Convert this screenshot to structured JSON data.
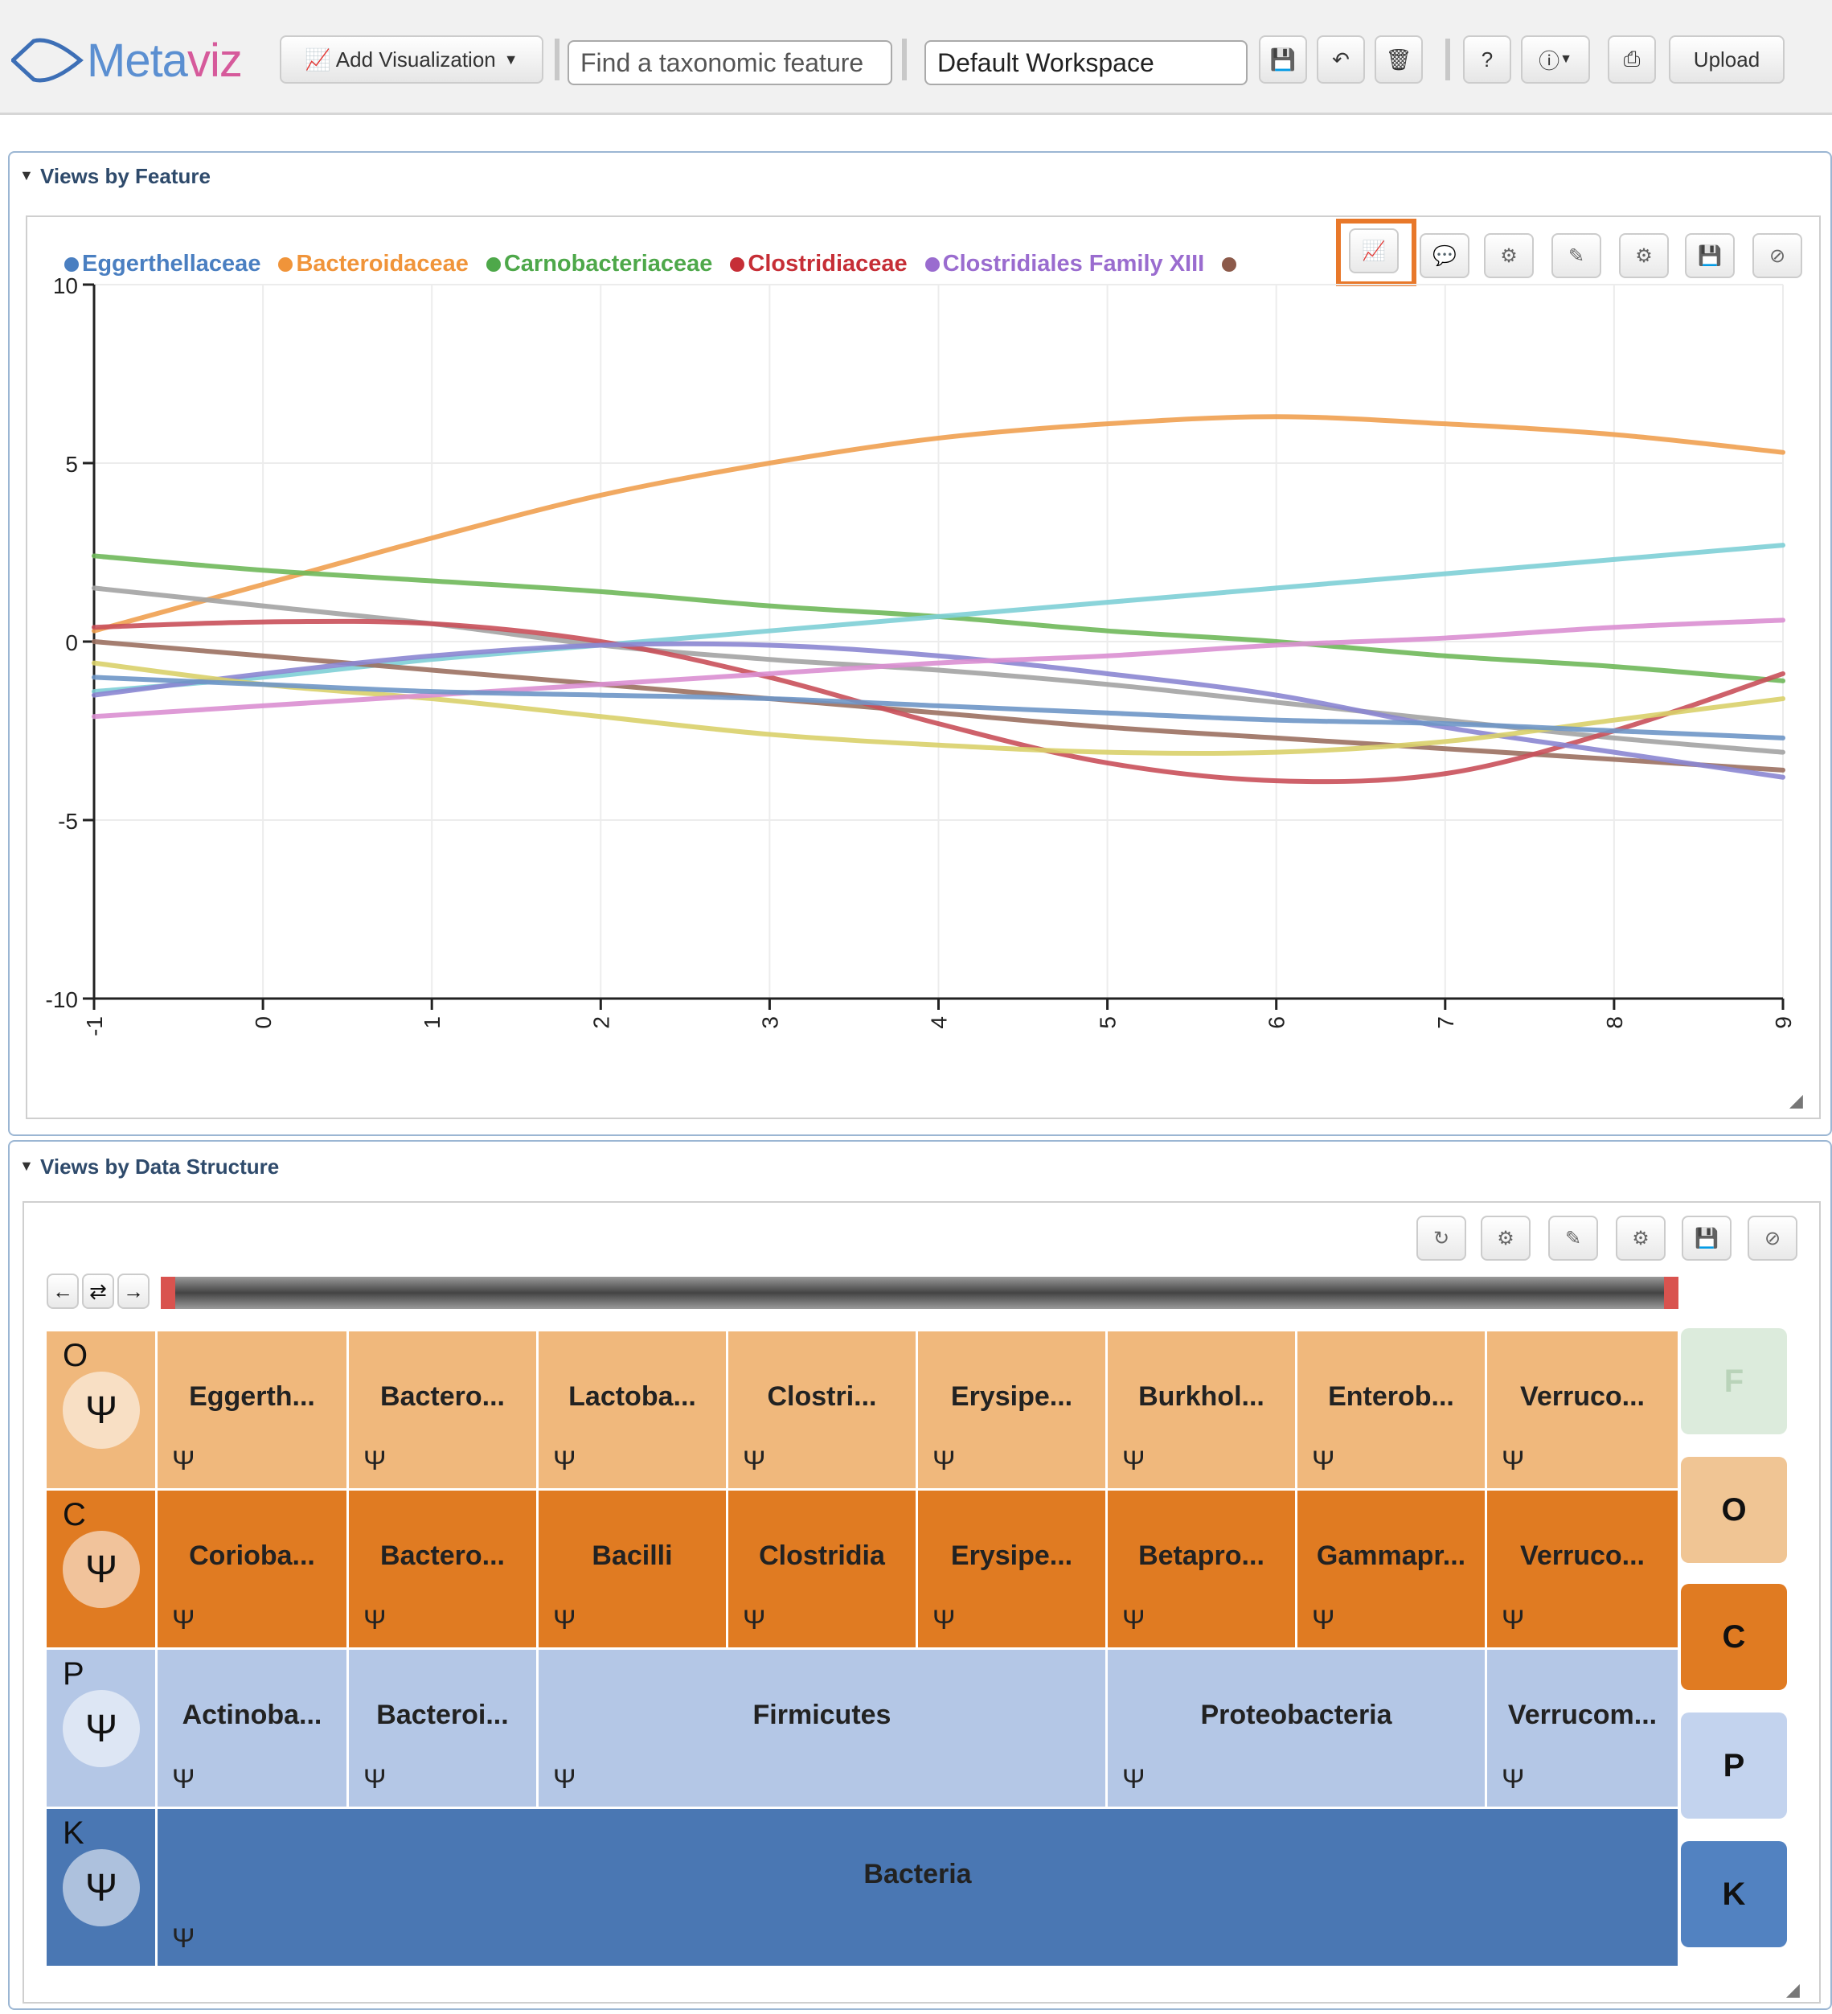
{
  "toolbar": {
    "logo_main": "Meta",
    "logo_accent": "viz",
    "add_viz_label": "Add Visualization",
    "search_placeholder": "Find a taxonomic feature",
    "workspace_value": "Default Workspace",
    "upload_label": "Upload",
    "help_label": "?",
    "icons": [
      "save-icon",
      "undo-icon",
      "trash-icon",
      "help-icon",
      "info-icon",
      "print-icon"
    ]
  },
  "feature_panel": {
    "title": "Views by Feature",
    "legend": [
      {
        "label": "Eggerthellaceae",
        "color": "#4a7fc1"
      },
      {
        "label": "Bacteroidaceae",
        "color": "#f0943a"
      },
      {
        "label": "Carnobacteriaceae",
        "color": "#4ea84a"
      },
      {
        "label": "Clostridiaceae",
        "color": "#c62e36"
      },
      {
        "label": "Clostridiales Family XIII",
        "color": "#9a6ccf"
      }
    ]
  },
  "chart_data": {
    "type": "line",
    "title": "",
    "xlabel": "",
    "ylabel": "",
    "xlim": [
      -1,
      9
    ],
    "ylim": [
      -10,
      10
    ],
    "x_ticks": [
      "-1",
      "0",
      "1",
      "2",
      "3",
      "4",
      "5",
      "6",
      "7",
      "8",
      "9"
    ],
    "y_ticks": [
      "10",
      "5",
      "0",
      "-5",
      "-10"
    ],
    "grid": true,
    "legend_position": "top",
    "x": [
      -1,
      0,
      1,
      2,
      3,
      4,
      5,
      6,
      7,
      8,
      9
    ],
    "series": [
      {
        "name": "Bacteroidaceae",
        "color": "#f0a050",
        "values": [
          0.3,
          1.6,
          2.9,
          4.1,
          5.0,
          5.7,
          6.1,
          6.3,
          6.1,
          5.8,
          5.3
        ]
      },
      {
        "name": "Carnobacteriaceae",
        "color": "#6fb85a",
        "values": [
          2.4,
          2.0,
          1.7,
          1.4,
          1.0,
          0.7,
          0.3,
          0.0,
          -0.4,
          -0.7,
          -1.1
        ]
      },
      {
        "name": "",
        "color": "#7ecfd6",
        "values": [
          -1.4,
          -1.0,
          -0.5,
          -0.1,
          0.3,
          0.7,
          1.1,
          1.5,
          1.9,
          2.3,
          2.7
        ]
      },
      {
        "name": "",
        "color": "#a3a3a3",
        "values": [
          1.5,
          1.0,
          0.5,
          -0.1,
          -0.5,
          -0.8,
          -1.2,
          -1.7,
          -2.2,
          -2.7,
          -3.1
        ]
      },
      {
        "name": "",
        "color": "#9b7060",
        "values": [
          0.0,
          -0.4,
          -0.8,
          -1.2,
          -1.6,
          -2.0,
          -2.4,
          -2.7,
          -3.0,
          -3.3,
          -3.6
        ]
      },
      {
        "name": "Clostridiaceae",
        "color": "#c9505a",
        "values": [
          0.4,
          0.55,
          0.5,
          0.0,
          -1.0,
          -2.3,
          -3.4,
          -3.9,
          -3.7,
          -2.5,
          -0.9
        ]
      },
      {
        "name": "Clostridiales Family XIII",
        "color": "#8b86d2",
        "values": [
          -1.5,
          -0.9,
          -0.4,
          -0.1,
          -0.1,
          -0.4,
          -0.9,
          -1.5,
          -2.4,
          -3.1,
          -3.8
        ]
      },
      {
        "name": "",
        "color": "#d9d06a",
        "values": [
          -0.6,
          -1.2,
          -1.6,
          -2.1,
          -2.6,
          -2.9,
          -3.1,
          -3.1,
          -2.8,
          -2.2,
          -1.6
        ]
      },
      {
        "name": "",
        "color": "#da8fd2",
        "values": [
          -2.1,
          -1.8,
          -1.5,
          -1.2,
          -0.9,
          -0.6,
          -0.4,
          -0.1,
          0.1,
          0.4,
          0.6
        ]
      },
      {
        "name": "Eggerthellaceae",
        "color": "#6e96c6",
        "values": [
          -1.0,
          -1.2,
          -1.4,
          -1.5,
          -1.6,
          -1.8,
          -2.0,
          -2.2,
          -2.3,
          -2.5,
          -2.7
        ]
      }
    ]
  },
  "structure_panel": {
    "title": "Views by Data Structure",
    "rows": [
      {
        "letter": "O",
        "bg": "#f0b87c",
        "cells": [
          "Eggerth...",
          "Bactero...",
          "Lactoba...",
          "Clostri...",
          "Erysipe...",
          "Burkhol...",
          "Enterob...",
          "Verruco..."
        ]
      },
      {
        "letter": "C",
        "bg": "#e07b22",
        "cells": [
          "Corioba...",
          "Bactero...",
          "Bacilli",
          "Clostridia",
          "Erysipe...",
          "Betapro...",
          "Gammapr...",
          "Verruco..."
        ]
      },
      {
        "letter": "P",
        "bg": "#b4c7e6",
        "cells": [
          "Actinoba...",
          "Bacteroi...",
          "Firmicutes",
          "Proteobacteria",
          "Verrucom..."
        ]
      },
      {
        "letter": "K",
        "bg": "#4a77b3",
        "cells": [
          "Bacteria"
        ]
      }
    ],
    "levels": [
      {
        "label": "F",
        "bg": "#dcebdc",
        "color": "#b9d3b9"
      },
      {
        "label": "O",
        "bg": "#f0c594",
        "color": "#111111"
      },
      {
        "label": "C",
        "bg": "#e07b22",
        "color": "#111111"
      },
      {
        "label": "P",
        "bg": "#c3d3ee",
        "color": "#111111"
      },
      {
        "label": "K",
        "bg": "#5282c1",
        "color": "#111111"
      }
    ]
  }
}
